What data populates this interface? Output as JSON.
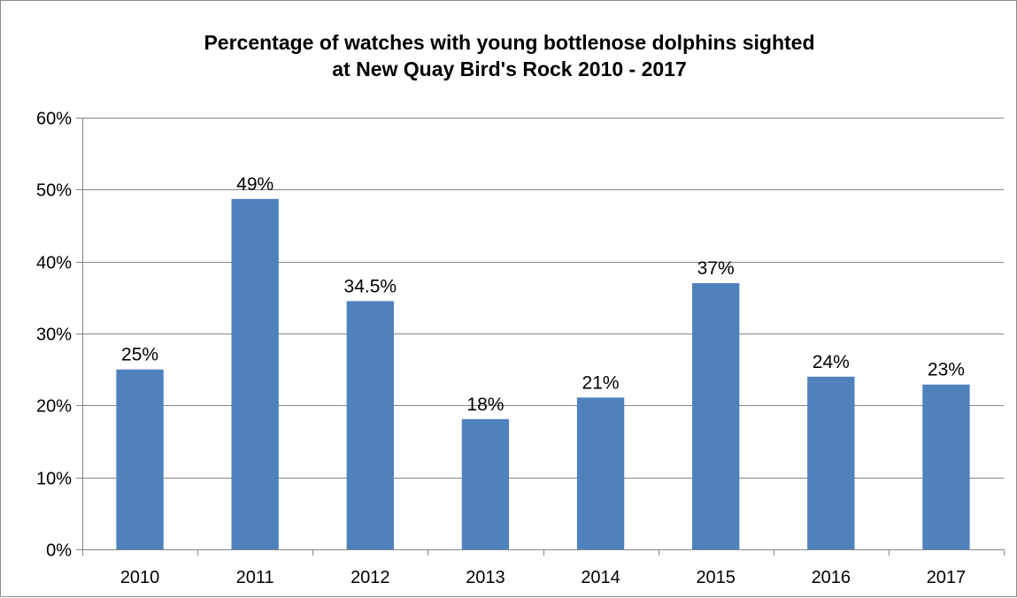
{
  "chart_data": {
    "type": "bar",
    "title": "Percentage of watches with young bottlenose dolphins sighted at New Quay Bird's Rock 2010 - 2017",
    "title_lines": [
      "Percentage of watches with young bottlenose dolphins sighted",
      "at New Quay Bird's Rock 2010 - 2017"
    ],
    "categories": [
      "2010",
      "2011",
      "2012",
      "2013",
      "2014",
      "2015",
      "2016",
      "2017"
    ],
    "values": [
      25,
      48.7,
      34.5,
      18.1,
      21.1,
      37.0,
      24.0,
      22.9
    ],
    "data_labels": [
      "25%",
      "49%",
      "34.5%",
      "18%",
      "21%",
      "37%",
      "24%",
      "23%"
    ],
    "ylim": [
      0,
      60
    ],
    "y_ticks": [
      0,
      10,
      20,
      30,
      40,
      50,
      60
    ],
    "y_tick_labels": [
      "0%",
      "10%",
      "20%",
      "30%",
      "40%",
      "50%",
      "60%"
    ],
    "xlabel": "",
    "ylabel": "",
    "grid": true,
    "legend": "none",
    "bar_color": "#4f81bd",
    "grid_color": "#868686",
    "axis_color": "#868686"
  }
}
